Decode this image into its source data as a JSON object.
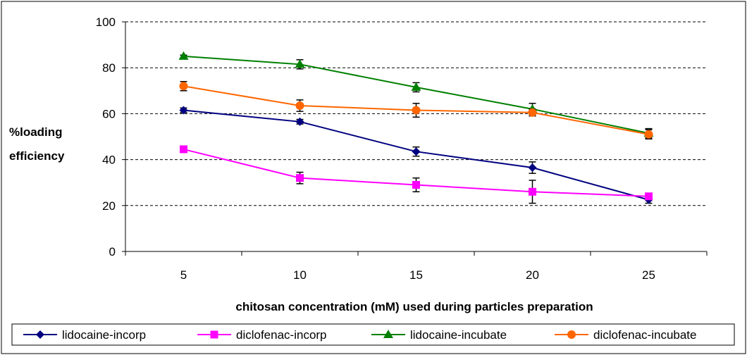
{
  "chart_data": {
    "type": "line",
    "categories": [
      "5",
      "10",
      "15",
      "20",
      "25"
    ],
    "xlabel": "chitosan concentration (mM) used during particles preparation",
    "ylabel_lines": [
      "%loading",
      "efficiency"
    ],
    "ylim": [
      0,
      100
    ],
    "yticks": [
      0,
      20,
      40,
      60,
      80,
      100
    ],
    "grid": "horizontal dashed",
    "legend_position": "bottom",
    "series": [
      {
        "name": "lidocaine-incorp",
        "color": "#000080",
        "marker": "diamond",
        "values": [
          61.5,
          56.5,
          43.5,
          36.5,
          22.5
        ],
        "errors": [
          1.0,
          1.0,
          2.0,
          2.5,
          1.5
        ]
      },
      {
        "name": "diclofenac-incorp",
        "color": "#FF00FF",
        "marker": "square",
        "values": [
          44.5,
          32.0,
          29.0,
          26.0,
          24.0
        ],
        "errors": [
          1.0,
          2.5,
          3.0,
          5.0,
          1.0
        ]
      },
      {
        "name": "lidocaine-incubate",
        "color": "#008000",
        "marker": "triangle",
        "values": [
          85.0,
          81.5,
          71.5,
          62.0,
          51.5
        ],
        "errors": [
          0.5,
          2.0,
          2.0,
          2.5,
          2.0
        ]
      },
      {
        "name": "diclofenac-incubate",
        "color": "#FF6600",
        "marker": "circle",
        "values": [
          72.0,
          63.5,
          61.5,
          60.5,
          51.0
        ],
        "errors": [
          2.0,
          2.5,
          3.0,
          1.5,
          2.0
        ]
      }
    ]
  }
}
